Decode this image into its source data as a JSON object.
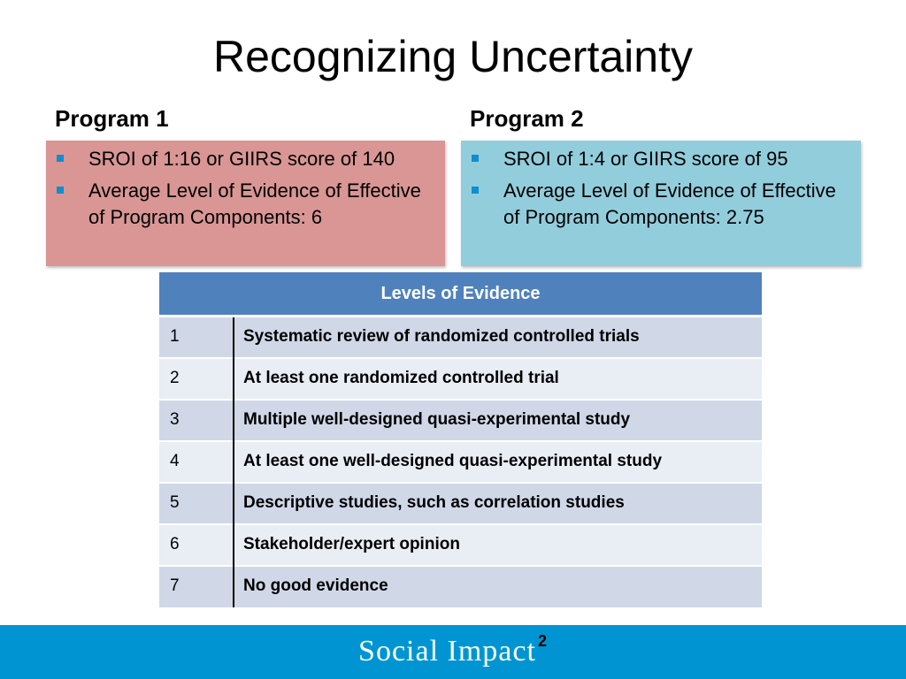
{
  "slide": {
    "title": "Recognizing Uncertainty"
  },
  "program1": {
    "heading": "Program 1",
    "box_color": "#d99694",
    "bullets": [
      "SROI of 1:16 or GIIRS score of 140",
      "Average Level of Evidence of Effective of Program Components: 6"
    ]
  },
  "program2": {
    "heading": "Program 2",
    "box_color": "#92cddc",
    "bullets": [
      "SROI of 1:4 or GIIRS score of 95",
      "Average Level of Evidence of Effective of Program Components: 2.75"
    ]
  },
  "bullet_color": "#0f8ecf",
  "evidence_table": {
    "header": "Levels of Evidence",
    "header_color": "#4f81bd",
    "rows": [
      {
        "level": "1",
        "description": "Systematic review of randomized controlled trials"
      },
      {
        "level": "2",
        "description": "At least one randomized controlled trial"
      },
      {
        "level": "3",
        "description": "Multiple well-designed quasi-experimental study"
      },
      {
        "level": "4",
        "description": "At least one well-designed quasi-experimental study"
      },
      {
        "level": "5",
        "description": "Descriptive studies, such as correlation studies"
      },
      {
        "level": "6",
        "description": "Stakeholder/expert opinion"
      },
      {
        "level": "7",
        "description": "No good evidence"
      }
    ]
  },
  "footer": {
    "brand": "Social Impact",
    "superscript": "2",
    "bar_color": "#0095d2"
  }
}
